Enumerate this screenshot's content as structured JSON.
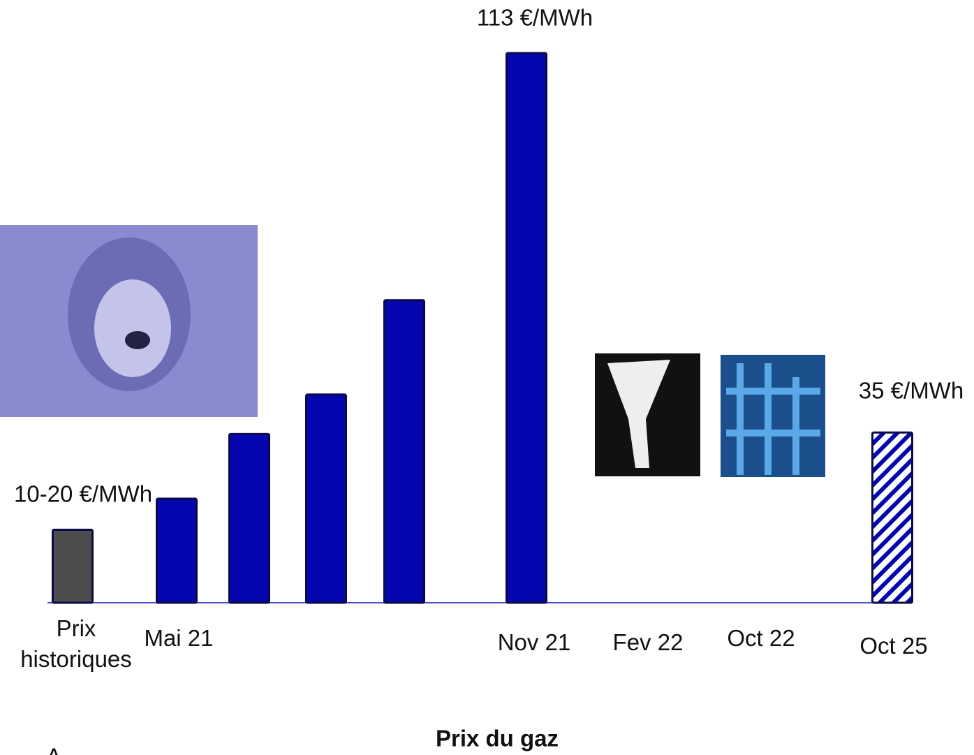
{
  "chart_data": {
    "type": "bar",
    "title": "Prix du gaz",
    "categories": [
      "Prix historiques",
      "Mai 21",
      null,
      null,
      null,
      "Nov 21",
      "Fev 22",
      "Oct 22",
      "Oct 25"
    ],
    "values": [
      15,
      21.4,
      34.7,
      42.8,
      62.2,
      113,
      null,
      null,
      35
    ],
    "value_labels": [
      null,
      null,
      null,
      null,
      null,
      "113 €/MWh",
      null,
      null,
      "35 €/MWh"
    ],
    "colors": [
      "#4d4d4d",
      "#0606b0",
      "#0606b0",
      "#0606b0",
      "#0606b0",
      "#0606b0",
      "#0606b0",
      "#0606b0",
      "#0606b0"
    ],
    "hatch": [
      false,
      false,
      false,
      false,
      false,
      false,
      false,
      false,
      true
    ],
    "annotation": "10-20 €/MWh",
    "footnote": "A"
  }
}
